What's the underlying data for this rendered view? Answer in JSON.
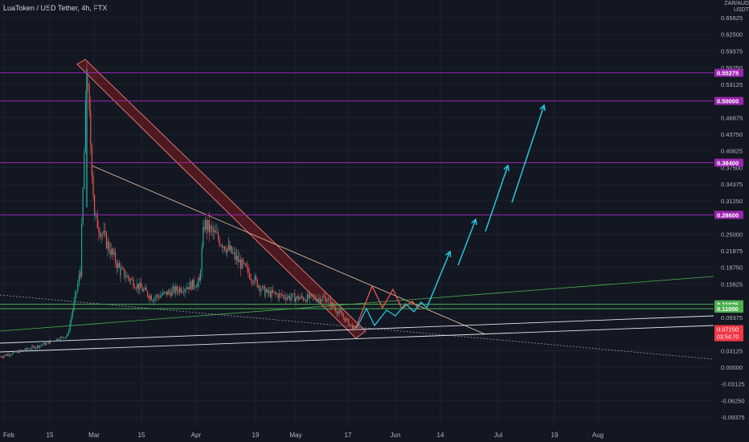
{
  "header": {
    "title": "LuaToken / USD Tether, 4h, FTX",
    "currency_label_top": "ZAR/AUD",
    "currency_label": "USDT"
  },
  "chart_data": {
    "type": "candlestick",
    "symbol": "LuaToken / USD Tether",
    "interval": "4h",
    "exchange": "FTX",
    "y_axis": {
      "ticks": [
        "0.65625",
        "0.62500",
        "0.59375",
        "0.56250",
        "0.53125",
        "0.46875",
        "0.43750",
        "0.40625",
        "0.37500",
        "0.34375",
        "0.31250",
        "0.25000",
        "0.21875",
        "0.18750",
        "0.15625",
        "0.09375",
        "0.03125",
        "0.00000",
        "-0.03125",
        "-0.06250",
        "-0.09375"
      ],
      "range": [
        -0.1,
        0.69
      ]
    },
    "x_axis": {
      "ticks": [
        "Feb",
        "15",
        "Mar",
        "15",
        "Apr",
        "19",
        "May",
        "17",
        "Jun",
        "14",
        "Jul",
        "19",
        "Aug"
      ]
    },
    "price_levels": [
      {
        "value": 0.55275,
        "label": "0.55275",
        "color": "#9c27b0"
      },
      {
        "value": 0.5,
        "label": "0.50000",
        "color": "#9c27b0"
      },
      {
        "value": 0.384,
        "label": "0.38400",
        "color": "#9c27b0"
      },
      {
        "value": 0.286,
        "label": "0.28600",
        "color": "#9c27b0"
      },
      {
        "value": 0.11825,
        "label": "0.11825",
        "color": "#4caf50"
      },
      {
        "value": 0.11,
        "label": "0.11000",
        "color": "#4caf50"
      }
    ],
    "last_price": {
      "value": 0.0715,
      "label": "0.07150",
      "countdown": "03:54:70",
      "color": "#f23645"
    },
    "series_approx": [
      {
        "date": "Feb 1",
        "close": 0.02
      },
      {
        "date": "Feb 10",
        "close": 0.04
      },
      {
        "date": "Feb 18",
        "close": 0.06
      },
      {
        "date": "Feb 24",
        "close": 0.18
      },
      {
        "date": "Feb 27",
        "close": 0.55
      },
      {
        "date": "Mar 1",
        "close": 0.28
      },
      {
        "date": "Mar 10",
        "close": 0.18
      },
      {
        "date": "Mar 20",
        "close": 0.13
      },
      {
        "date": "Apr 1",
        "close": 0.16
      },
      {
        "date": "Apr 3",
        "close": 0.27
      },
      {
        "date": "Apr 12",
        "close": 0.22
      },
      {
        "date": "Apr 22",
        "close": 0.14
      },
      {
        "date": "May 1",
        "close": 0.13
      },
      {
        "date": "May 10",
        "close": 0.13
      },
      {
        "date": "May 17",
        "close": 0.07
      }
    ],
    "grid": true
  },
  "colors": {
    "background": "#131722",
    "grid": "#1e222d",
    "up": "#26a69a",
    "down": "#ef5350",
    "projection_up": "#26c6da",
    "projection_down": "#ef5350",
    "channel": "#b71c1c"
  }
}
